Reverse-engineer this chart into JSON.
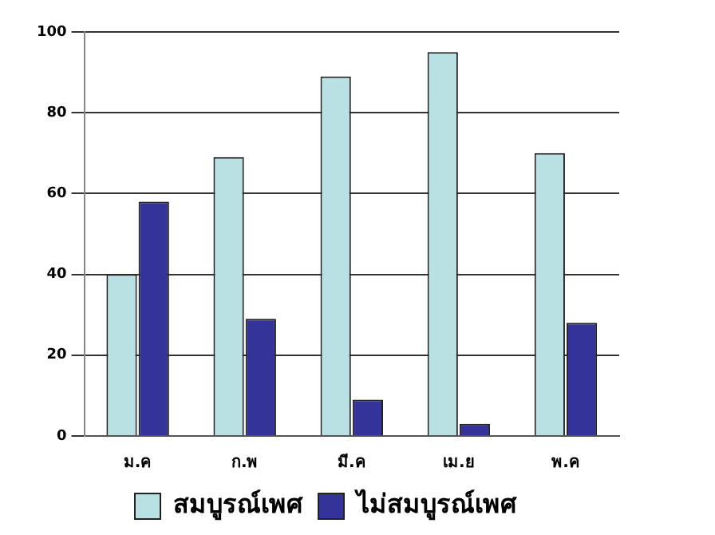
{
  "chart_data": {
    "type": "bar",
    "categories": [
      "ม.ค",
      "ก.พ",
      "มี.ค",
      "เม.ย",
      "พ.ค"
    ],
    "series": [
      {
        "name": "สมบูรณ์เพศ",
        "color": "#b9e0e3",
        "values": [
          40,
          69,
          89,
          95,
          70
        ]
      },
      {
        "name": "ไม่สมบูรณ์เพศ",
        "color": "#33339a",
        "values": [
          58,
          29,
          9,
          3,
          28
        ]
      }
    ],
    "ylim": [
      0,
      100
    ],
    "yticks": [
      0,
      20,
      40,
      60,
      80,
      100
    ],
    "grid": "y",
    "legend": "bottom"
  }
}
